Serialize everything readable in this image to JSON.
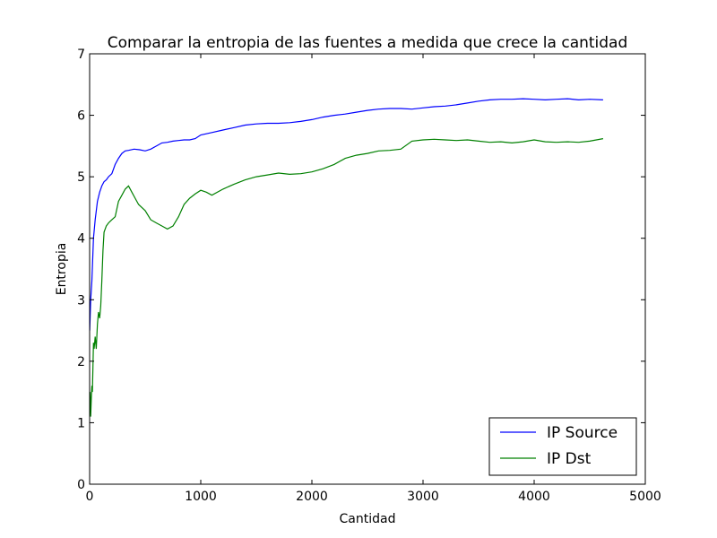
{
  "chart_data": {
    "type": "line",
    "title": "Comparar la entropia de las fuentes a medida que crece la cantidad",
    "xlabel": "Cantidad",
    "ylabel": "Entropia",
    "xlim": [
      0,
      5000
    ],
    "ylim": [
      0,
      7
    ],
    "xticks": [
      "0",
      "1000",
      "2000",
      "3000",
      "4000",
      "5000"
    ],
    "yticks": [
      "0",
      "1",
      "2",
      "3",
      "4",
      "5",
      "6",
      "7"
    ],
    "grid": false,
    "legend": "lower-right",
    "series": [
      {
        "name": "IP Source",
        "color": "#0000ff",
        "x": [
          1,
          10,
          20,
          35,
          50,
          70,
          90,
          110,
          130,
          150,
          170,
          200,
          230,
          260,
          290,
          320,
          350,
          400,
          450,
          500,
          550,
          600,
          650,
          700,
          750,
          800,
          850,
          900,
          950,
          1000,
          1100,
          1200,
          1300,
          1400,
          1500,
          1600,
          1700,
          1800,
          1900,
          2000,
          2100,
          2200,
          2300,
          2400,
          2500,
          2600,
          2700,
          2800,
          2900,
          3000,
          3100,
          3200,
          3300,
          3400,
          3500,
          3600,
          3700,
          3800,
          3900,
          4000,
          4100,
          4200,
          4300,
          4400,
          4500,
          4620
        ],
        "values": [
          2.5,
          3.0,
          3.3,
          4.0,
          4.3,
          4.6,
          4.75,
          4.85,
          4.92,
          4.95,
          5.0,
          5.05,
          5.2,
          5.3,
          5.38,
          5.42,
          5.43,
          5.45,
          5.44,
          5.42,
          5.45,
          5.5,
          5.55,
          5.56,
          5.58,
          5.59,
          5.6,
          5.6,
          5.62,
          5.68,
          5.72,
          5.76,
          5.8,
          5.84,
          5.86,
          5.87,
          5.87,
          5.88,
          5.9,
          5.93,
          5.97,
          6.0,
          6.02,
          6.05,
          6.08,
          6.1,
          6.11,
          6.11,
          6.1,
          6.12,
          6.14,
          6.15,
          6.17,
          6.2,
          6.23,
          6.25,
          6.26,
          6.26,
          6.27,
          6.26,
          6.25,
          6.26,
          6.27,
          6.25,
          6.26,
          6.25
        ]
      },
      {
        "name": "IP Dst",
        "color": "#008000",
        "x": [
          1,
          5,
          10,
          15,
          20,
          25,
          30,
          35,
          40,
          50,
          60,
          70,
          80,
          90,
          100,
          110,
          120,
          130,
          150,
          170,
          200,
          230,
          260,
          290,
          320,
          350,
          380,
          410,
          440,
          470,
          500,
          550,
          600,
          650,
          700,
          750,
          800,
          850,
          900,
          950,
          1000,
          1050,
          1100,
          1200,
          1300,
          1400,
          1500,
          1600,
          1700,
          1800,
          1900,
          2000,
          2100,
          2200,
          2300,
          2400,
          2500,
          2600,
          2700,
          2800,
          2900,
          3000,
          3100,
          3200,
          3300,
          3400,
          3500,
          3600,
          3700,
          3800,
          3900,
          4000,
          4100,
          4200,
          4300,
          4400,
          4500,
          4620
        ],
        "values": [
          1.2,
          1.5,
          1.1,
          1.4,
          1.6,
          1.5,
          1.9,
          2.3,
          2.2,
          2.4,
          2.2,
          2.6,
          2.8,
          2.7,
          2.9,
          3.3,
          3.8,
          4.1,
          4.2,
          4.25,
          4.3,
          4.35,
          4.6,
          4.7,
          4.8,
          4.85,
          4.75,
          4.65,
          4.55,
          4.5,
          4.45,
          4.3,
          4.25,
          4.2,
          4.15,
          4.2,
          4.35,
          4.55,
          4.65,
          4.72,
          4.78,
          4.75,
          4.7,
          4.8,
          4.88,
          4.95,
          5.0,
          5.03,
          5.06,
          5.04,
          5.05,
          5.08,
          5.13,
          5.2,
          5.3,
          5.35,
          5.38,
          5.42,
          5.43,
          5.45,
          5.58,
          5.6,
          5.61,
          5.6,
          5.59,
          5.6,
          5.58,
          5.56,
          5.57,
          5.55,
          5.57,
          5.6,
          5.57,
          5.56,
          5.57,
          5.56,
          5.58,
          5.62
        ]
      }
    ]
  }
}
